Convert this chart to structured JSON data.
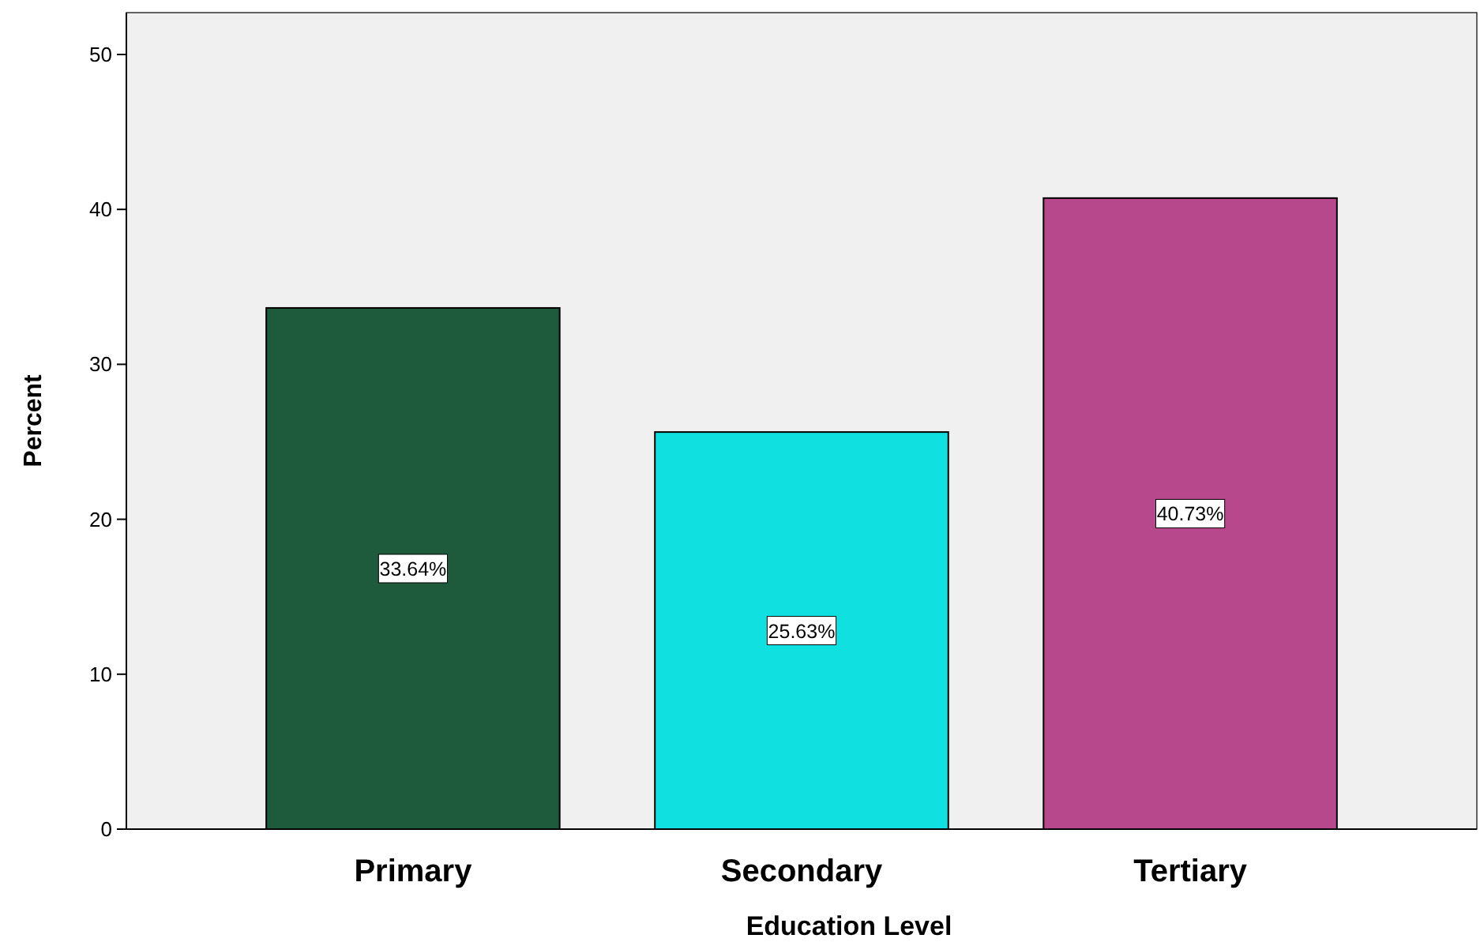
{
  "chart_data": {
    "type": "bar",
    "xlabel": "Education Level",
    "ylabel": "Percent",
    "categories": [
      "Primary",
      "Secondary",
      "Tertiary"
    ],
    "values": [
      33.64,
      25.63,
      40.73
    ],
    "value_labels": [
      "33.64%",
      "25.63%",
      "40.73%"
    ],
    "colors": [
      "#1e5a3c",
      "#10e0e0",
      "#b8488c"
    ],
    "ylim": [
      0,
      52.7
    ],
    "yticks": [
      0,
      10,
      20,
      30,
      40,
      50
    ],
    "grid": false
  }
}
